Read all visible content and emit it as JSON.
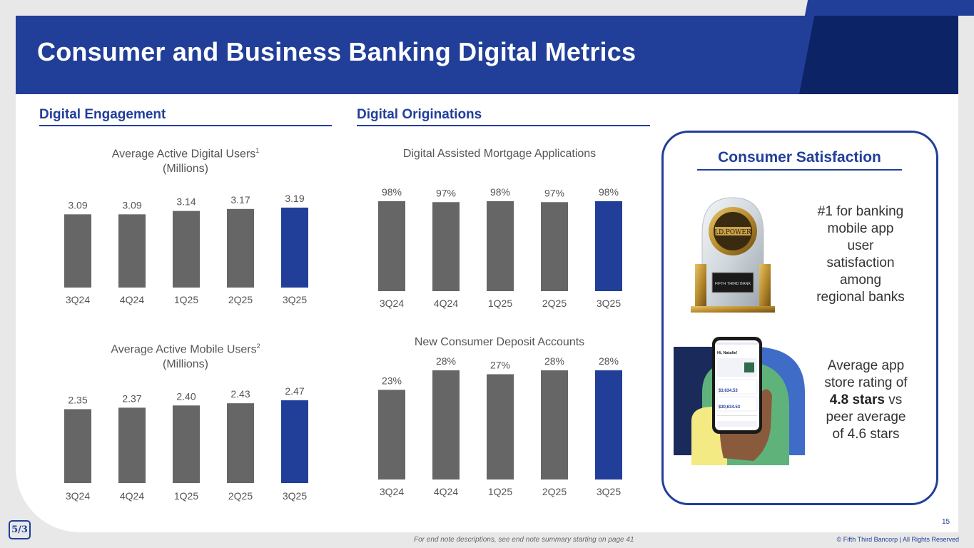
{
  "slide": {
    "title": "Consumer and Business Banking Digital Metrics",
    "page_number": "15",
    "footnote": "For end note descriptions, see end note summary starting on page 41",
    "copyright": "© Fifth Third Bancorp | All Rights Reserved",
    "logo_text": "5/3"
  },
  "sections": {
    "engagement": "Digital Engagement",
    "originations": "Digital Originations"
  },
  "colors": {
    "bar_gray": "#666666",
    "bar_highlight": "#213f99",
    "brand_blue": "#213f99",
    "brand_dark": "#0c2466"
  },
  "chart_data": [
    {
      "type": "bar",
      "title": "Average Active Digital Users",
      "title_sup": "1",
      "subtitle": "(Millions)",
      "categories": [
        "3Q24",
        "4Q24",
        "1Q25",
        "2Q25",
        "3Q25"
      ],
      "values": [
        3.09,
        3.09,
        3.14,
        3.17,
        3.19
      ],
      "labels": [
        "3.09",
        "3.09",
        "3.14",
        "3.17",
        "3.19"
      ],
      "highlight_index": 4
    },
    {
      "type": "bar",
      "title": "Average Active Mobile Users",
      "title_sup": "2",
      "subtitle": "(Millions)",
      "categories": [
        "3Q24",
        "4Q24",
        "1Q25",
        "2Q25",
        "3Q25"
      ],
      "values": [
        2.35,
        2.37,
        2.4,
        2.43,
        2.47
      ],
      "labels": [
        "2.35",
        "2.37",
        "2.40",
        "2.43",
        "2.47"
      ],
      "highlight_index": 4
    },
    {
      "type": "bar",
      "title": "Digital Assisted Mortgage Applications",
      "categories": [
        "3Q24",
        "4Q24",
        "1Q25",
        "2Q25",
        "3Q25"
      ],
      "values": [
        98,
        97,
        98,
        97,
        98
      ],
      "labels": [
        "98%",
        "97%",
        "98%",
        "97%",
        "98%"
      ],
      "highlight_index": 4
    },
    {
      "type": "bar",
      "title": "New Consumer Deposit Accounts",
      "categories": [
        "3Q24",
        "4Q24",
        "1Q25",
        "2Q25",
        "3Q25"
      ],
      "values": [
        23,
        28,
        27,
        28,
        28
      ],
      "labels": [
        "23%",
        "28%",
        "27%",
        "28%",
        "28%"
      ],
      "highlight_index": 4
    }
  ],
  "satisfaction": {
    "title": "Consumer Satisfaction",
    "award_text": "#1 for banking mobile app user satisfaction among regional banks",
    "award_lines": [
      "#1 for banking",
      "mobile app",
      "user",
      "satisfaction",
      "among",
      "regional banks"
    ],
    "award_badge_text": "J.D.POWER",
    "award_plate_text": "FIFTH THIRD BANK",
    "rating_pre": "Average app store rating of",
    "rating_bold": "4.8 stars",
    "rating_post": "vs peer average of 4.6 stars",
    "rating_lines": [
      "Average app",
      "store rating of",
      "vs",
      "peer average",
      "of 4.6 stars"
    ],
    "phone_greeting": "Hi, Natalie!",
    "phone_balance_1": "$3,634.53",
    "phone_balance_2": "$30,634.53"
  }
}
